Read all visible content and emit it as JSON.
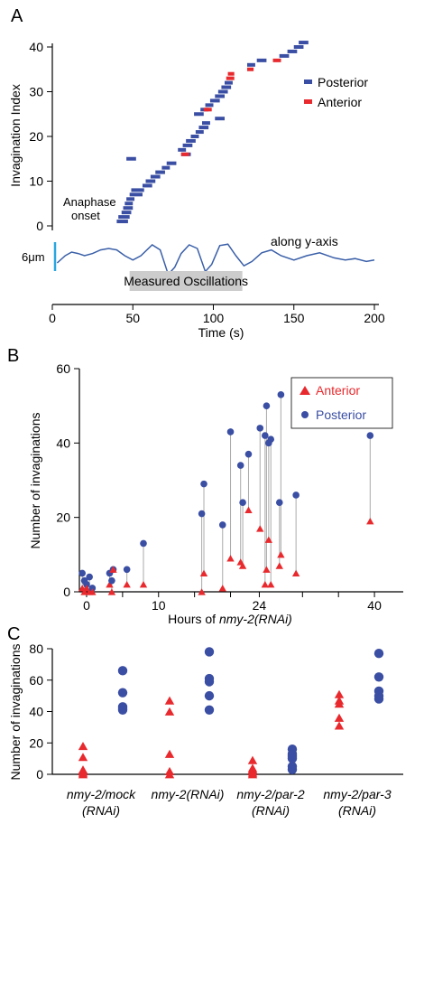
{
  "colors": {
    "posterior": "#3a4ea3",
    "anterior": "#e8292d",
    "oscillation": "#3a5fa8",
    "scale_bar": "#29a7de",
    "stem": "#aaaaaa",
    "band_bg": "#cccccc"
  },
  "chart_data": [
    {
      "panel": "A",
      "type": "gantt",
      "xlabel": "Time (s)",
      "ylabel": "Invagination Index",
      "xlim": [
        0,
        200
      ],
      "ylim": [
        0,
        42
      ],
      "xticks": [
        "0",
        "50",
        "100",
        "150",
        "200"
      ],
      "yticks": [
        "0",
        "10",
        "20",
        "30",
        "40"
      ],
      "legend": {
        "placement": "top-right",
        "entries": [
          "Posterior",
          "Anterior"
        ]
      },
      "annotations": {
        "onset_line1": "Anaphase",
        "onset_line2": "onset",
        "trace_label": "along y-axis",
        "scale_label": "6μm",
        "band_label": "Measured Oscillations"
      },
      "band_range": [
        48,
        118
      ],
      "oscillation_trace": [
        [
          3,
          -1
        ],
        [
          8,
          0
        ],
        [
          12,
          0.5
        ],
        [
          16,
          0.3
        ],
        [
          20,
          0
        ],
        [
          25,
          0.3
        ],
        [
          30,
          0.8
        ],
        [
          35,
          1
        ],
        [
          40,
          0.8
        ],
        [
          45,
          0
        ],
        [
          50,
          -0.6
        ],
        [
          55,
          0
        ],
        [
          62,
          1.5
        ],
        [
          67,
          0.8
        ],
        [
          72,
          -2.6
        ],
        [
          76,
          -1.6
        ],
        [
          80,
          0.3
        ],
        [
          85,
          1.5
        ],
        [
          90,
          1
        ],
        [
          95,
          -2.2
        ],
        [
          99,
          -1.2
        ],
        [
          104,
          1.4
        ],
        [
          109,
          1.6
        ],
        [
          114,
          0
        ],
        [
          119,
          -1.4
        ],
        [
          124,
          -0.8
        ],
        [
          130,
          0.4
        ],
        [
          136,
          0.8
        ],
        [
          142,
          0
        ],
        [
          150,
          -0.6
        ],
        [
          158,
          0
        ],
        [
          166,
          0.4
        ],
        [
          175,
          -0.3
        ],
        [
          182,
          -0.6
        ],
        [
          188,
          -0.4
        ],
        [
          195,
          -0.8
        ],
        [
          200,
          -0.6
        ]
      ],
      "posterior_events": [
        {
          "idx": 1,
          "start": 40,
          "end": 47
        },
        {
          "idx": 2,
          "start": 41,
          "end": 48
        },
        {
          "idx": 3,
          "start": 43,
          "end": 49
        },
        {
          "idx": 4,
          "start": 44,
          "end": 50
        },
        {
          "idx": 5,
          "start": 45,
          "end": 50
        },
        {
          "idx": 6,
          "start": 46,
          "end": 51
        },
        {
          "idx": 7,
          "start": 48,
          "end": 56
        },
        {
          "idx": 8,
          "start": 49,
          "end": 57
        },
        {
          "idx": 9,
          "start": 56,
          "end": 62
        },
        {
          "idx": 10,
          "start": 58,
          "end": 64
        },
        {
          "idx": 11,
          "start": 61,
          "end": 67
        },
        {
          "idx": 12,
          "start": 64,
          "end": 70
        },
        {
          "idx": 13,
          "start": 68,
          "end": 73
        },
        {
          "idx": 14,
          "start": 71,
          "end": 77
        },
        {
          "idx": 15,
          "start": 46,
          "end": 52
        },
        {
          "idx": 16,
          "start": 80,
          "end": 86
        },
        {
          "idx": 17,
          "start": 78,
          "end": 83
        },
        {
          "idx": 18,
          "start": 81,
          "end": 87
        },
        {
          "idx": 19,
          "start": 83,
          "end": 89
        },
        {
          "idx": 20,
          "start": 86,
          "end": 91
        },
        {
          "idx": 21,
          "start": 89,
          "end": 94
        },
        {
          "idx": 22,
          "start": 91,
          "end": 97
        },
        {
          "idx": 23,
          "start": 93,
          "end": 98
        },
        {
          "idx": 24,
          "start": 101,
          "end": 107
        },
        {
          "idx": 25,
          "start": 88,
          "end": 94
        },
        {
          "idx": 26,
          "start": 92,
          "end": 97
        },
        {
          "idx": 27,
          "start": 95,
          "end": 100
        },
        {
          "idx": 28,
          "start": 98,
          "end": 104
        },
        {
          "idx": 29,
          "start": 101,
          "end": 107
        },
        {
          "idx": 30,
          "start": 103,
          "end": 109
        },
        {
          "idx": 31,
          "start": 105,
          "end": 111
        },
        {
          "idx": 32,
          "start": 107,
          "end": 112
        },
        {
          "idx": 36,
          "start": 121,
          "end": 126
        },
        {
          "idx": 37,
          "start": 127,
          "end": 133
        },
        {
          "idx": 38,
          "start": 141,
          "end": 147
        },
        {
          "idx": 39,
          "start": 146,
          "end": 152
        },
        {
          "idx": 40,
          "start": 150,
          "end": 156
        },
        {
          "idx": 41,
          "start": 153,
          "end": 159
        }
      ],
      "anterior_events": [
        {
          "idx": 16,
          "start": 80,
          "end": 85
        },
        {
          "idx": 26,
          "start": 94,
          "end": 99
        },
        {
          "idx": 33,
          "start": 108,
          "end": 113
        },
        {
          "idx": 34,
          "start": 109,
          "end": 113
        },
        {
          "idx": 35,
          "start": 121,
          "end": 125
        },
        {
          "idx": 37,
          "start": 137,
          "end": 142
        }
      ]
    },
    {
      "panel": "B",
      "type": "scatter",
      "xlabel_prefix": "Hours of ",
      "xlabel_italic": "nmy-2(RNAi)",
      "ylabel": "Number of invaginations",
      "xlim": [
        -1,
        44
      ],
      "ylim": [
        0,
        60
      ],
      "xticks": [
        "0",
        "10",
        "24",
        "40"
      ],
      "yticks": [
        "0",
        "20",
        "40",
        "60"
      ],
      "legend": {
        "placement": "top-right",
        "entries": [
          "Anterior",
          "Posterior"
        ]
      },
      "pairs": [
        {
          "x": -0.6,
          "anterior": 1,
          "posterior": 5
        },
        {
          "x": -0.3,
          "anterior": 0,
          "posterior": 3
        },
        {
          "x": 0,
          "anterior": 1,
          "posterior": 2
        },
        {
          "x": 0.4,
          "anterior": 0,
          "posterior": 4
        },
        {
          "x": 0.8,
          "anterior": 0,
          "posterior": 1
        },
        {
          "x": 3.2,
          "anterior": 2,
          "posterior": 5
        },
        {
          "x": 3.5,
          "anterior": 0,
          "posterior": 3
        },
        {
          "x": 3.7,
          "anterior": 6,
          "posterior": 6
        },
        {
          "x": 5.6,
          "anterior": 2,
          "posterior": 6
        },
        {
          "x": 7.9,
          "anterior": 2,
          "posterior": 13
        },
        {
          "x": 16.0,
          "anterior": 0,
          "posterior": 21
        },
        {
          "x": 16.3,
          "anterior": 5,
          "posterior": 29
        },
        {
          "x": 18.9,
          "anterior": 1,
          "posterior": 18
        },
        {
          "x": 20.0,
          "anterior": 9,
          "posterior": 43
        },
        {
          "x": 21.4,
          "anterior": 8,
          "posterior": 34
        },
        {
          "x": 21.7,
          "anterior": 7,
          "posterior": 24
        },
        {
          "x": 22.5,
          "anterior": 22,
          "posterior": 37
        },
        {
          "x": 24.1,
          "anterior": 17,
          "posterior": 44
        },
        {
          "x": 24.8,
          "anterior": 2,
          "posterior": 42
        },
        {
          "x": 25.0,
          "anterior": 6,
          "posterior": 50
        },
        {
          "x": 25.3,
          "anterior": 14,
          "posterior": 40
        },
        {
          "x": 25.6,
          "anterior": 2,
          "posterior": 41
        },
        {
          "x": 26.8,
          "anterior": 7,
          "posterior": 24
        },
        {
          "x": 27.0,
          "anterior": 10,
          "posterior": 53
        },
        {
          "x": 29.1,
          "anterior": 5,
          "posterior": 26
        },
        {
          "x": 39.4,
          "anterior": 19,
          "posterior": 42
        }
      ]
    },
    {
      "panel": "C",
      "type": "scatter",
      "ylabel": "Number of invaginations",
      "ylim": [
        0,
        80
      ],
      "yticks": [
        "0",
        "20",
        "40",
        "60",
        "80"
      ],
      "groups": [
        {
          "label_line1": "nmy-2/mock",
          "label_line2": "(RNAi)",
          "anterior": [
            18,
            11,
            3,
            2,
            1,
            0
          ],
          "posterior": [
            66,
            52,
            43,
            42,
            41
          ]
        },
        {
          "label_line1": "nmy-2(RNAi)",
          "label_line2": "",
          "anterior": [
            47,
            40,
            13,
            2,
            0
          ],
          "posterior": [
            78,
            61,
            59,
            50,
            41
          ]
        },
        {
          "label_line1": "nmy-2/par-2",
          "label_line2": "(RNAi)",
          "anterior": [
            9,
            4,
            3,
            2,
            1,
            0
          ],
          "posterior": [
            16,
            13,
            12,
            11,
            10,
            5,
            3
          ]
        },
        {
          "label_line1": "nmy-2/par-3",
          "label_line2": "(RNAi)",
          "anterior": [
            51,
            47,
            45,
            36,
            31
          ],
          "posterior": [
            77,
            62,
            53,
            50,
            48
          ]
        }
      ]
    }
  ]
}
